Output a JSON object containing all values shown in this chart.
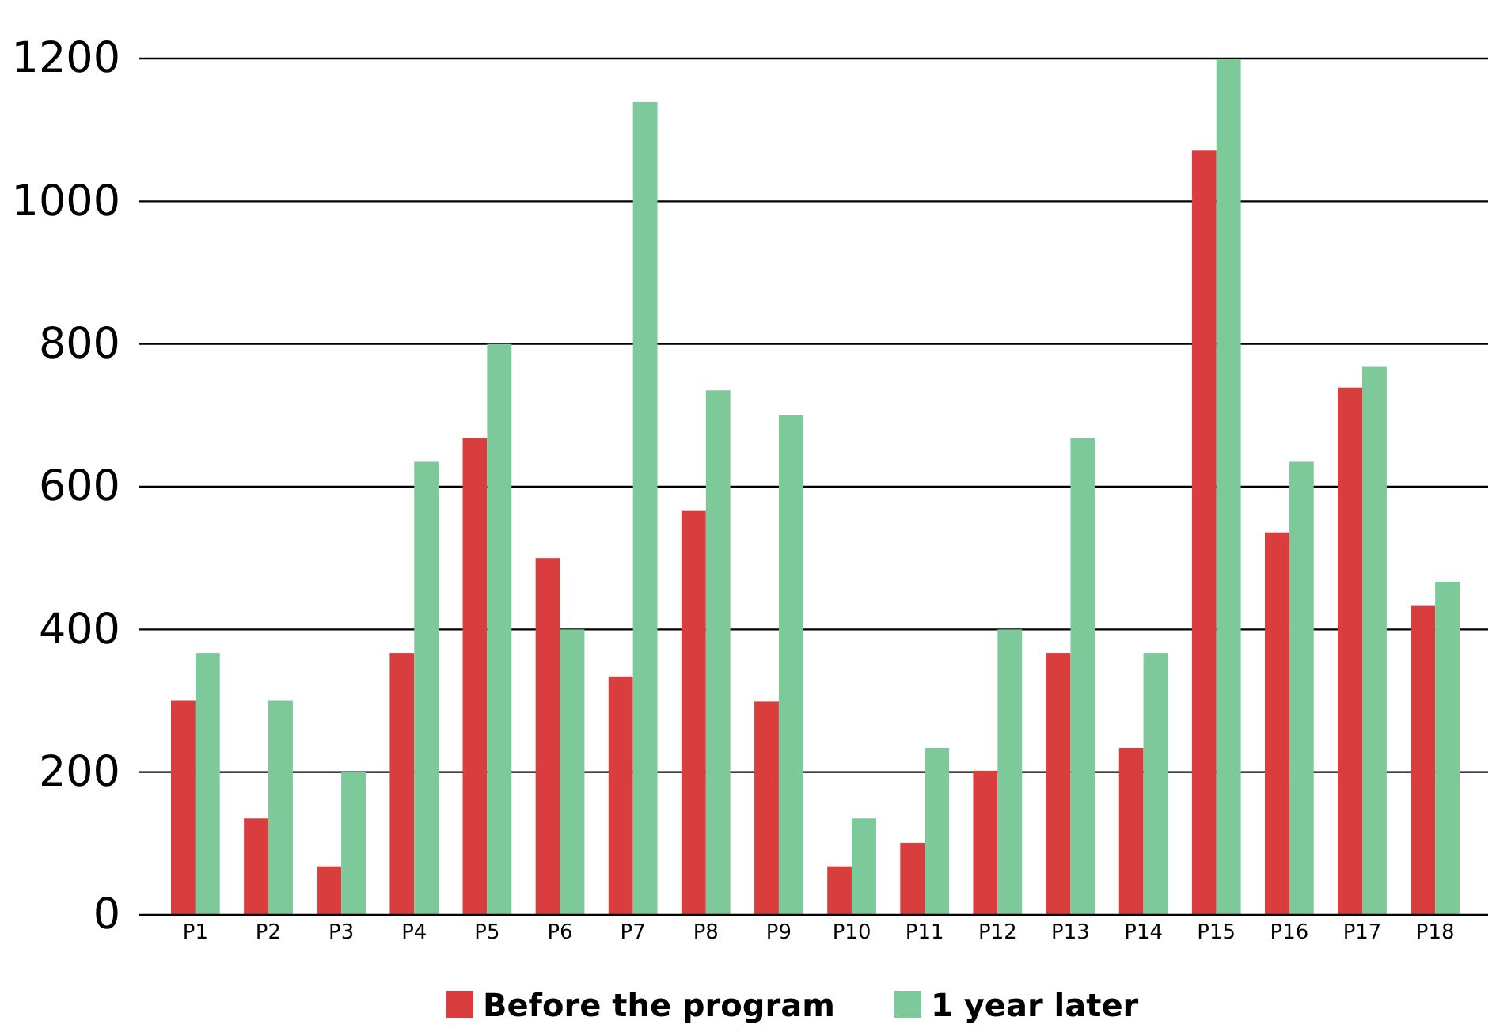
{
  "chart_data": {
    "type": "bar",
    "categories": [
      "P1",
      "P2",
      "P3",
      "P4",
      "P5",
      "P6",
      "P7",
      "P8",
      "P9",
      "P10",
      "P11",
      "P12",
      "P13",
      "P14",
      "P15",
      "P16",
      "P17",
      "P18"
    ],
    "series": [
      {
        "name": "Before the program",
        "color": "#d93d3d",
        "values": [
          300,
          135,
          68,
          367,
          668,
          500,
          334,
          566,
          299,
          68,
          101,
          202,
          367,
          234,
          1071,
          536,
          739,
          433
        ]
      },
      {
        "name": "1 year later",
        "color": "#7dc999",
        "values": [
          367,
          300,
          200,
          635,
          800,
          400,
          1139,
          735,
          700,
          135,
          234,
          400,
          668,
          367,
          1200,
          635,
          768,
          467
        ]
      }
    ],
    "ylim": [
      0,
      1200
    ],
    "yticks": [
      0,
      200,
      400,
      600,
      800,
      1000,
      1200
    ],
    "grid": "y",
    "legend": "bottom"
  }
}
